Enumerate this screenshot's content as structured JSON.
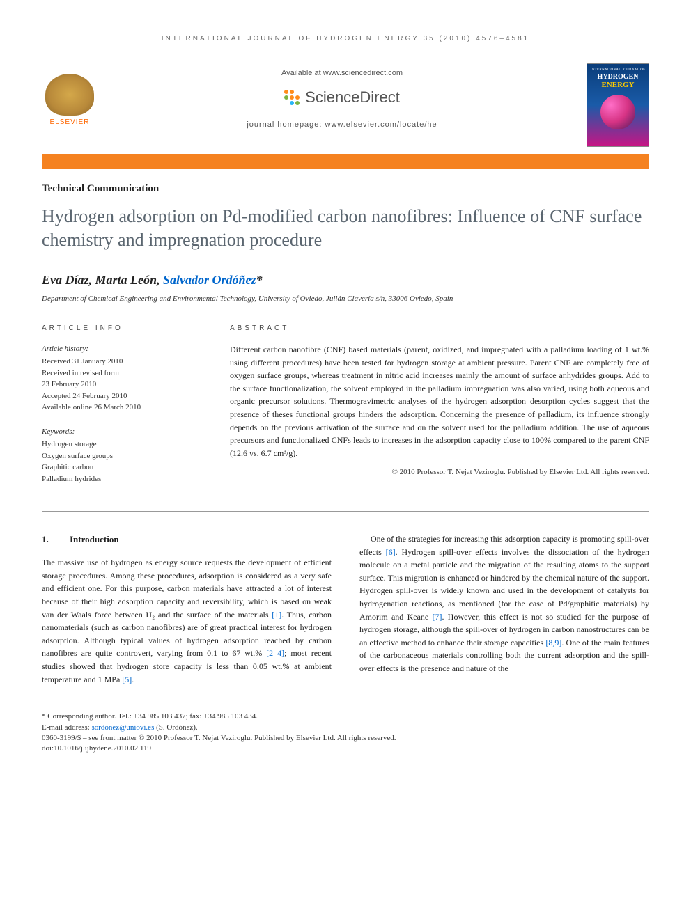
{
  "running_head": "INTERNATIONAL JOURNAL OF HYDROGEN ENERGY 35 (2010) 4576–4581",
  "header": {
    "elsevier_label": "ELSEVIER",
    "available_text": "Available at www.sciencedirect.com",
    "sciencedirect_text": "ScienceDirect",
    "homepage_text": "journal homepage: www.elsevier.com/locate/he",
    "cover_line1": "INTERNATIONAL JOURNAL OF",
    "cover_line2": "HYDROGEN",
    "cover_line3": "ENERGY"
  },
  "article_type": "Technical Communication",
  "title": "Hydrogen adsorption on Pd-modified carbon nanofibres: Influence of CNF surface chemistry and impregnation procedure",
  "authors_plain": "Eva Díaz, Marta León, ",
  "author_corr": "Salvador Ordóñez",
  "corr_marker": "*",
  "affiliation": "Department of Chemical Engineering and Environmental Technology, University of Oviedo, Julián Clavería s/n, 33006 Oviedo, Spain",
  "info": {
    "heading": "ARTICLE INFO",
    "history_label": "Article history:",
    "received": "Received 31 January 2010",
    "revised_label": "Received in revised form",
    "revised_date": "23 February 2010",
    "accepted": "Accepted 24 February 2010",
    "online": "Available online 26 March 2010",
    "keywords_label": "Keywords:",
    "kw1": "Hydrogen storage",
    "kw2": "Oxygen surface groups",
    "kw3": "Graphitic carbon",
    "kw4": "Palladium hydrides"
  },
  "abstract": {
    "heading": "ABSTRACT",
    "text": "Different carbon nanofibre (CNF) based materials (parent, oxidized, and impregnated with a palladium loading of 1 wt.% using different procedures) have been tested for hydrogen storage at ambient pressure. Parent CNF are completely free of oxygen surface groups, whereas treatment in nitric acid increases mainly the amount of surface anhydrides groups. Add to the surface functionalization, the solvent employed in the palladium impregnation was also varied, using both aqueous and organic precursor solutions. Thermogravimetric analyses of the hydrogen adsorption–desorption cycles suggest that the presence of theses functional groups hinders the adsorption. Concerning the presence of palladium, its influence strongly depends on the previous activation of the surface and on the solvent used for the palladium addition. The use of aqueous precursors and functionalized CNFs leads to increases in the adsorption capacity close to 100% compared to the parent CNF (12.6 vs. 6.7 cm³/g).",
    "copyright": "© 2010 Professor T. Nejat Veziroglu. Published by Elsevier Ltd. All rights reserved."
  },
  "body": {
    "sec_num": "1.",
    "sec_title": "Introduction",
    "col1_p1_a": "The massive use of hydrogen as energy source requests the development of efficient storage procedures. Among these procedures, adsorption is considered as a very safe and efficient one. For this purpose, carbon materials have attracted a lot of interest because of their high adsorption capacity and reversibility, which is based on weak van der Waals force between H₂ and the surface of the materials ",
    "ref1": "[1]",
    "col1_p1_b": ". Thus, carbon nanomaterials (such as carbon nanofibres) are of great practical interest for hydrogen adsorption. Although typical values of hydrogen adsorption reached by carbon nanofibres are quite controvert, varying from 0.1 to 67 wt.% ",
    "ref2": "[2–4]",
    "col1_p1_c": "; most recent studies showed that hydrogen store capacity is less than 0.05 wt.% at ambient temperature and 1 MPa ",
    "ref5": "[5]",
    "col1_p1_d": ".",
    "col2_p1_a": "One of the strategies for increasing this adsorption capacity is promoting spill-over effects ",
    "ref6": "[6]",
    "col2_p1_b": ". Hydrogen spill-over effects involves the dissociation of the hydrogen molecule on a metal particle and the migration of the resulting atoms to the support surface. This migration is enhanced or hindered by the chemical nature of the support. Hydrogen spill-over is widely known and used in the development of catalysts for hydrogenation reactions, as mentioned (for the case of Pd/graphitic materials) by Amorim and Keane ",
    "ref7": "[7]",
    "col2_p1_c": ". However, this effect is not so studied for the purpose of hydrogen storage, although the spill-over of hydrogen in carbon nanostructures can be an effective method to enhance their storage capacities ",
    "ref89": "[8,9]",
    "col2_p1_d": ". One of the main features of the carbonaceous materials controlling both the current adsorption and the spill-over effects is the presence and nature of the"
  },
  "footnotes": {
    "corr": "* Corresponding author. Tel.: +34 985 103 437; fax: +34 985 103 434.",
    "email_label": "E-mail address: ",
    "email": "sordonez@uniovi.es",
    "email_person": " (S. Ordóñez).",
    "line1": "0360-3199/$ – see front matter © 2010 Professor T. Nejat Veziroglu. Published by Elsevier Ltd. All rights reserved.",
    "line2": "doi:10.1016/j.ijhydene.2010.02.119"
  },
  "colors": {
    "orange_bar": "#f58220",
    "title_gray": "#5b6670",
    "link_blue": "#0066cc",
    "sd_orange": "#ff8c1a",
    "sd_green": "#7cb342",
    "sd_blue": "#29b6f6"
  }
}
